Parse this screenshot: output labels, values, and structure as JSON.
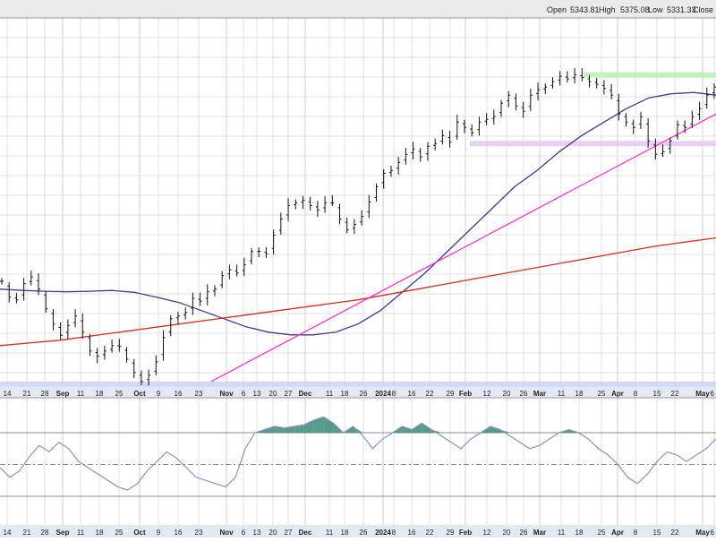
{
  "header": {
    "open_label": "Open",
    "open_value": "5343.81",
    "high_label": "High",
    "high_value": "5375.08",
    "low_label": "Low",
    "low_value": "5331.33",
    "close_label": "Close"
  },
  "colors": {
    "background": "#ffffff",
    "header_band": "#ebebeb",
    "axis_band": "#e3e9f3",
    "grid": "#e2e2e2",
    "price_bar": "#111111",
    "ma_short": "#3e3a8c",
    "ma_long": "#d62d20",
    "trendline": "#ff33cc",
    "resistance_zone": "#b9f0b1",
    "support_zone": "#e6c8f5",
    "bottom_zone": "#cad2f4",
    "oscillator_line": "#8a93c4",
    "oscillator_fill": "#3a8a78",
    "oscillator_level": "#8c8c8c"
  },
  "chart_data": [
    {
      "type": "bar",
      "description_kind": "ohlc-price-chart",
      "x_tick_labels": [
        "14",
        "21",
        "28",
        "Sep",
        "11",
        "18",
        "25",
        "Oct",
        "9",
        "16",
        "23",
        "Nov",
        "6",
        "13",
        "20",
        "27",
        "Dec",
        "11",
        "18",
        "26",
        "2024",
        "8",
        "16",
        "22",
        "29",
        "Feb",
        "12",
        "20",
        "26",
        "Mar",
        "11",
        "18",
        "25",
        "Apr",
        "8",
        "15",
        "22",
        "May",
        "6"
      ],
      "x_range": [
        "2023-08-14",
        "2024-05-07"
      ],
      "ohlc_closes_approx": [
        4489,
        4430,
        4420,
        4480,
        4505,
        4460,
        4387,
        4330,
        4288,
        4325,
        4360,
        4300,
        4230,
        4211,
        4230,
        4250,
        4247,
        4200,
        4150,
        4117,
        4140,
        4190,
        4280,
        4350,
        4360,
        4373,
        4425,
        4415,
        4450,
        4460,
        4510,
        4531,
        4520,
        4550,
        4600,
        4600,
        4590,
        4660,
        4720,
        4770,
        4780,
        4790,
        4770,
        4754,
        4780,
        4780,
        4720,
        4680,
        4700,
        4730,
        4783,
        4840,
        4890,
        4900,
        4930,
        4960,
        4980,
        4950,
        4990,
        5000,
        5030,
        5005,
        5080,
        5060,
        5040,
        5080,
        5090,
        5100,
        5150,
        5180,
        5140,
        5120,
        5180,
        5200,
        5210,
        5230,
        5250,
        5240,
        5255,
        5245,
        5230,
        5220,
        5205,
        5180,
        5110,
        5080,
        5060,
        5100,
        5010,
        4960,
        4970,
        5010,
        5070,
        5060,
        5100,
        5130,
        5180,
        5210
      ],
      "moving_averages": [
        {
          "kind": "short",
          "values_approx": [
            4460,
            4455,
            4452,
            4450,
            4452,
            4455,
            4448,
            4430,
            4410,
            4380,
            4350,
            4320,
            4300,
            4290,
            4290,
            4300,
            4330,
            4380,
            4450,
            4520,
            4600,
            4680,
            4760,
            4840,
            4900,
            4970,
            5030,
            5080,
            5130,
            5170,
            5185,
            5190,
            5180
          ]
        },
        {
          "kind": "long",
          "values_approx": [
            4250,
            4270,
            4300,
            4330,
            4360,
            4390,
            4420,
            4460,
            4500,
            4540,
            4580,
            4620,
            4650
          ]
        }
      ],
      "trendline": {
        "from": [
          "2023-10-27",
          4117
        ],
        "to": [
          "2024-05-07",
          5110
        ]
      },
      "zones": [
        {
          "kind": "resistance",
          "low": 5250,
          "high": 5265
        },
        {
          "kind": "support",
          "low": 4990,
          "high": 5010
        },
        {
          "kind": "bottom",
          "low": 4103,
          "high": 4117
        }
      ],
      "grid": true,
      "price_scale_labels": "none"
    },
    {
      "type": "line",
      "description_kind": "momentum-oscillator",
      "levels": [
        70,
        50,
        30
      ],
      "values_approx": [
        48,
        42,
        46,
        55,
        62,
        58,
        64,
        60,
        52,
        48,
        44,
        40,
        36,
        34,
        38,
        46,
        52,
        58,
        54,
        48,
        42,
        40,
        38,
        36,
        42,
        60,
        70,
        72,
        74,
        73,
        74,
        75,
        78,
        80,
        76,
        70,
        74,
        68,
        60,
        66,
        70,
        74,
        72,
        76,
        72,
        68,
        64,
        60,
        66,
        70,
        74,
        72,
        68,
        64,
        60,
        62,
        66,
        70,
        72,
        70,
        66,
        60,
        56,
        50,
        42,
        38,
        44,
        52,
        58,
        56,
        52,
        56,
        60,
        66
      ],
      "grid": true
    }
  ]
}
